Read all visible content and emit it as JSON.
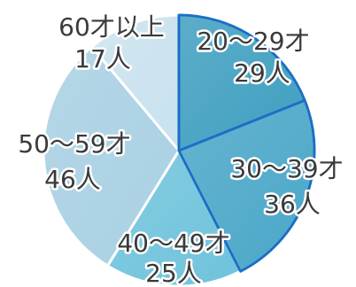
{
  "chart_data": {
    "type": "pie",
    "slices": [
      {
        "label": "20～29才",
        "value": 29,
        "value_label": "29人",
        "color": "#3f9fc0",
        "outline": "#1a6fc4"
      },
      {
        "label": "30～39才",
        "value": 36,
        "value_label": "36人",
        "color": "#4aa7c8",
        "outline": "#1a6fc4"
      },
      {
        "label": "40～49才",
        "value": 25,
        "value_label": "25人",
        "color": "#6fc3dc",
        "outline": "#ffffff"
      },
      {
        "label": "50～59才",
        "value": 46,
        "value_label": "46人",
        "color": "#a8d0e3",
        "outline": "#ffffff"
      },
      {
        "label": "60才以上",
        "value": 17,
        "value_label": "17人",
        "color": "#c9e2ef",
        "outline": "#ffffff"
      }
    ]
  }
}
